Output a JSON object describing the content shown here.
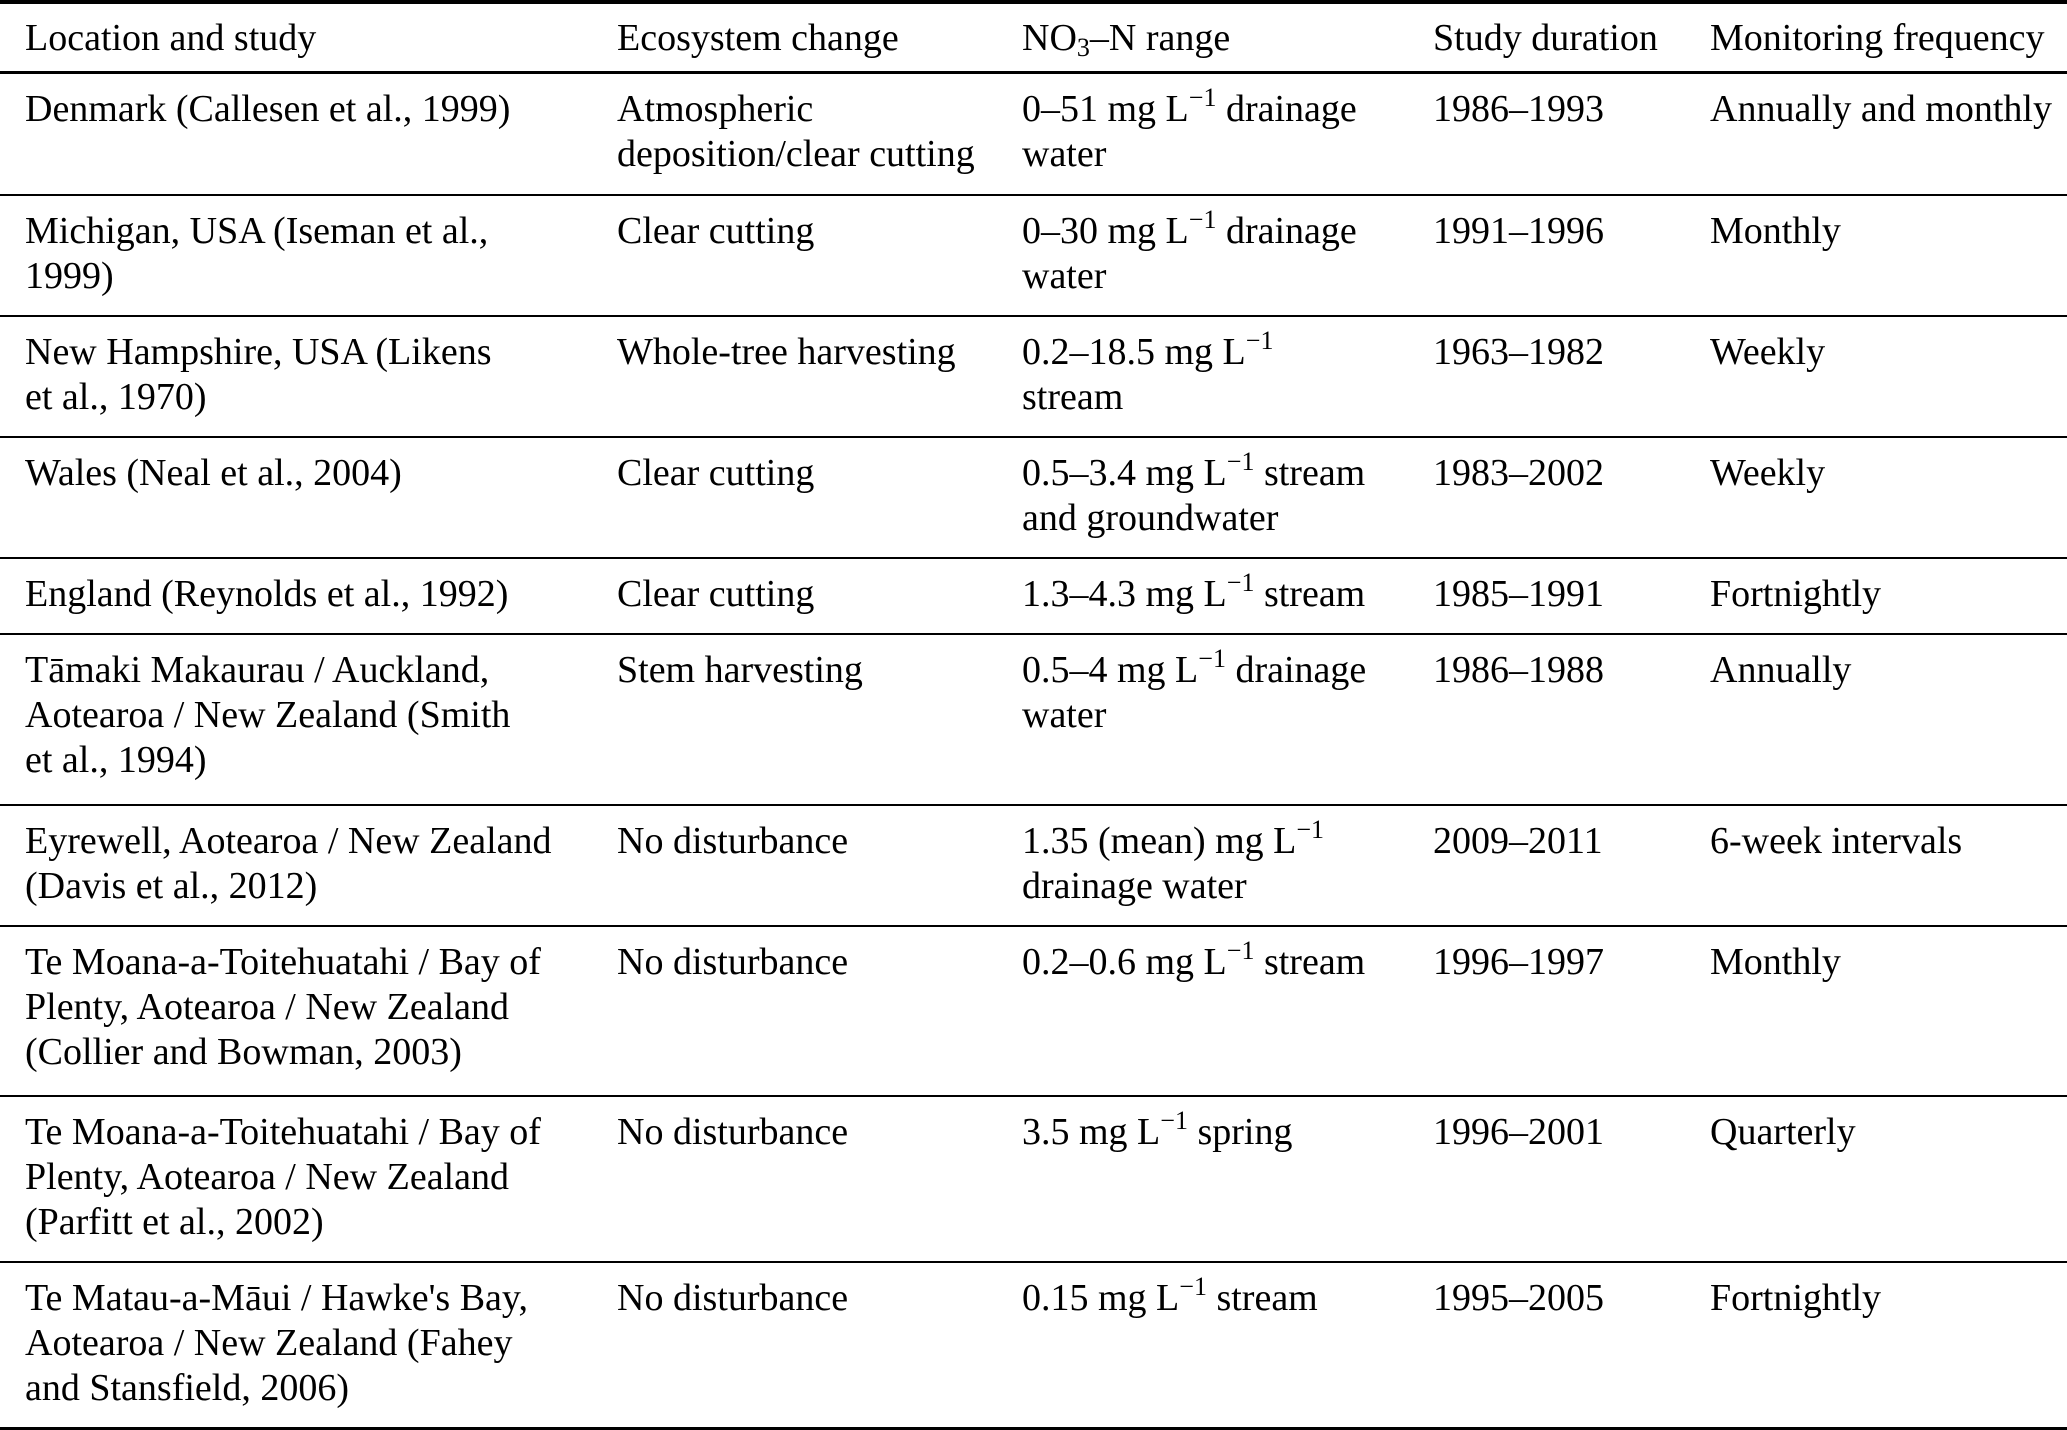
{
  "page": {
    "background": "#ffffff",
    "text_color": "#000000",
    "rule_color": "#000000"
  },
  "table": {
    "columns": [
      "Location and study",
      "Ecosystem change",
      "NO~3~–N range",
      "Study duration",
      "Monitoring frequency"
    ],
    "rows": [
      {
        "cells": [
          "Denmark (Callesen et al., 1999)",
          "Atmospheric\ndeposition/clear cutting",
          "0–51 mg L^−1^ drainage\nwater",
          "1986–1993",
          "Annually and monthly"
        ]
      },
      {
        "cells": [
          "Michigan, USA (Iseman et al.,\n1999)",
          "Clear cutting",
          "0–30 mg L^−1^ drainage\nwater",
          "1991–1996",
          "Monthly"
        ]
      },
      {
        "cells": [
          "New Hampshire, USA (Likens\net al., 1970)",
          "Whole-tree harvesting",
          "0.2–18.5 mg L^−1^\nstream",
          "1963–1982",
          "Weekly"
        ]
      },
      {
        "cells": [
          "Wales (Neal et al., 2004)",
          "Clear cutting",
          "0.5–3.4 mg L^−1^ stream\nand groundwater",
          "1983–2002",
          "Weekly"
        ]
      },
      {
        "cells": [
          "England (Reynolds et al., 1992)",
          "Clear cutting",
          "1.3–4.3 mg L^−1^ stream",
          "1985–1991",
          "Fortnightly"
        ]
      },
      {
        "cells": [
          "Tāmaki Makaurau / Auckland,\nAotearoa / New Zealand (Smith\net al., 1994)",
          "Stem harvesting",
          "0.5–4 mg L^−1^ drainage\nwater",
          "1986–1988",
          "Annually"
        ]
      },
      {
        "cells": [
          "Eyrewell, Aotearoa / New Zealand\n(Davis et al., 2012)",
          "No disturbance",
          "1.35 (mean) mg L^−1^\ndrainage water",
          "2009–2011",
          "6-week intervals"
        ]
      },
      {
        "cells": [
          "Te Moana-a-Toitehuatahi / Bay of\nPlenty, Aotearoa / New Zealand\n(Collier and Bowman, 2003)",
          "No disturbance",
          "0.2–0.6 mg L^−1^ stream",
          "1996–1997",
          "Monthly"
        ]
      },
      {
        "cells": [
          "Te Moana-a-Toitehuatahi / Bay of\nPlenty, Aotearoa / New Zealand\n(Parfitt et al., 2002)",
          "No disturbance",
          "3.5 mg L^−1^ spring",
          "1996–2001",
          "Quarterly"
        ]
      },
      {
        "cells": [
          "Te Matau-a-Māui / Hawke's Bay,\nAotearoa / New Zealand (Fahey\nand Stansfield, 2006)",
          "No disturbance",
          "0.15 mg L^−1^ stream",
          "1995–2005",
          "Fortnightly"
        ]
      }
    ]
  }
}
